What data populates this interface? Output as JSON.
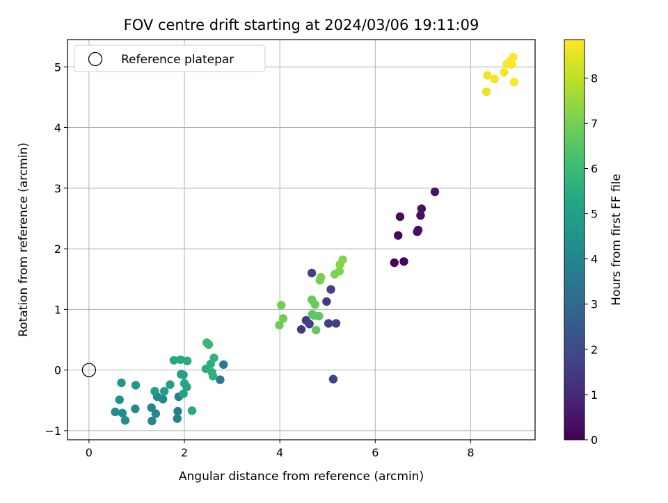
{
  "chart_data": {
    "type": "scatter",
    "title": "FOV centre drift starting at 2024/03/06 19:11:09",
    "xlabel": "Angular distance from reference (arcmin)",
    "ylabel": "Rotation from reference (arcmin)",
    "xlim": [
      -0.45,
      9.35
    ],
    "ylim": [
      -1.15,
      5.45
    ],
    "xticks": [
      0,
      2,
      4,
      6,
      8
    ],
    "yticks": [
      -1,
      0,
      1,
      2,
      3,
      4,
      5
    ],
    "grid": true,
    "legend": {
      "placement": "top-left",
      "entries": [
        "Reference platepar"
      ]
    },
    "reference_point": {
      "x": 0,
      "y": 0,
      "label": "Reference platepar"
    },
    "colorbar": {
      "label": "Hours from first FF file",
      "range": [
        0,
        8.85
      ],
      "ticks": [
        0,
        1,
        2,
        3,
        4,
        5,
        6,
        7,
        8
      ],
      "colormap": "viridis"
    },
    "series": [
      {
        "points": [
          {
            "x": 6.4,
            "y": 1.77,
            "h": 0.05
          },
          {
            "x": 6.6,
            "y": 1.79,
            "h": 0.1
          },
          {
            "x": 6.48,
            "y": 2.22,
            "h": 0.2
          },
          {
            "x": 6.52,
            "y": 2.53,
            "h": 0.25
          },
          {
            "x": 6.88,
            "y": 2.28,
            "h": 0.3
          },
          {
            "x": 6.9,
            "y": 2.31,
            "h": 0.35
          },
          {
            "x": 6.95,
            "y": 2.55,
            "h": 0.4
          },
          {
            "x": 6.97,
            "y": 2.66,
            "h": 0.45
          },
          {
            "x": 7.25,
            "y": 2.94,
            "h": 0.5
          },
          {
            "x": 4.45,
            "y": 0.67,
            "h": 1.55
          },
          {
            "x": 4.55,
            "y": 0.82,
            "h": 1.6
          },
          {
            "x": 4.62,
            "y": 0.76,
            "h": 1.65
          },
          {
            "x": 4.67,
            "y": 1.6,
            "h": 1.7
          },
          {
            "x": 4.98,
            "y": 1.13,
            "h": 1.55
          },
          {
            "x": 5.02,
            "y": 0.77,
            "h": 1.6
          },
          {
            "x": 5.07,
            "y": 1.33,
            "h": 1.7
          },
          {
            "x": 5.18,
            "y": 0.77,
            "h": 1.65
          },
          {
            "x": 5.12,
            "y": -0.15,
            "h": 1.75
          },
          {
            "x": 2.75,
            "y": -0.16,
            "h": 3.5
          },
          {
            "x": 2.82,
            "y": 0.09,
            "h": 3.6
          },
          {
            "x": 1.88,
            "y": -0.44,
            "h": 3.7
          },
          {
            "x": 1.86,
            "y": -0.68,
            "h": 3.8
          },
          {
            "x": 1.85,
            "y": -0.8,
            "h": 3.85
          },
          {
            "x": 1.31,
            "y": -0.62,
            "h": 3.95
          },
          {
            "x": 1.32,
            "y": -0.84,
            "h": 4.0
          },
          {
            "x": 1.4,
            "y": -0.72,
            "h": 4.05
          },
          {
            "x": 1.43,
            "y": -0.44,
            "h": 4.1
          },
          {
            "x": 1.55,
            "y": -0.48,
            "h": 4.15
          },
          {
            "x": 0.97,
            "y": -0.64,
            "h": 4.2
          },
          {
            "x": 0.55,
            "y": -0.69,
            "h": 4.3
          },
          {
            "x": 0.64,
            "y": -0.49,
            "h": 4.35
          },
          {
            "x": 0.7,
            "y": -0.71,
            "h": 4.4
          },
          {
            "x": 0.76,
            "y": -0.83,
            "h": 4.5
          },
          {
            "x": 0.68,
            "y": -0.21,
            "h": 4.6
          },
          {
            "x": 0.98,
            "y": -0.25,
            "h": 4.7
          },
          {
            "x": 1.38,
            "y": -0.35,
            "h": 4.8
          },
          {
            "x": 1.58,
            "y": -0.35,
            "h": 4.9
          },
          {
            "x": 1.7,
            "y": -0.24,
            "h": 5.0
          },
          {
            "x": 1.93,
            "y": -0.07,
            "h": 5.05
          },
          {
            "x": 1.98,
            "y": -0.08,
            "h": 5.1
          },
          {
            "x": 1.98,
            "y": -0.39,
            "h": 5.15
          },
          {
            "x": 2.0,
            "y": -0.22,
            "h": 5.2
          },
          {
            "x": 2.05,
            "y": -0.28,
            "h": 5.25
          },
          {
            "x": 1.78,
            "y": 0.16,
            "h": 5.3
          },
          {
            "x": 1.92,
            "y": 0.17,
            "h": 5.35
          },
          {
            "x": 2.06,
            "y": 0.15,
            "h": 5.4
          },
          {
            "x": 2.16,
            "y": -0.67,
            "h": 5.45
          },
          {
            "x": 2.45,
            "y": 0.02,
            "h": 5.5
          },
          {
            "x": 2.55,
            "y": 0.1,
            "h": 5.55
          },
          {
            "x": 2.58,
            "y": -0.04,
            "h": 5.6
          },
          {
            "x": 2.6,
            "y": -0.1,
            "h": 5.65
          },
          {
            "x": 2.62,
            "y": 0.2,
            "h": 5.7
          },
          {
            "x": 2.47,
            "y": 0.45,
            "h": 5.8
          },
          {
            "x": 2.51,
            "y": 0.42,
            "h": 5.85
          },
          {
            "x": 4.68,
            "y": 0.92,
            "h": 6.55
          },
          {
            "x": 4.72,
            "y": 0.9,
            "h": 6.6
          },
          {
            "x": 4.82,
            "y": 0.89,
            "h": 6.65
          },
          {
            "x": 4.76,
            "y": 0.66,
            "h": 6.7
          },
          {
            "x": 4.67,
            "y": 1.16,
            "h": 6.75
          },
          {
            "x": 4.74,
            "y": 1.08,
            "h": 6.8
          },
          {
            "x": 3.99,
            "y": 0.74,
            "h": 6.85
          },
          {
            "x": 4.07,
            "y": 0.85,
            "h": 6.9
          },
          {
            "x": 4.03,
            "y": 1.07,
            "h": 6.95
          },
          {
            "x": 4.84,
            "y": 1.48,
            "h": 7.0
          },
          {
            "x": 4.86,
            "y": 1.53,
            "h": 7.05
          },
          {
            "x": 5.15,
            "y": 1.58,
            "h": 7.1
          },
          {
            "x": 5.25,
            "y": 1.63,
            "h": 7.15
          },
          {
            "x": 5.26,
            "y": 1.74,
            "h": 7.2
          },
          {
            "x": 5.32,
            "y": 1.82,
            "h": 7.25
          },
          {
            "x": 8.33,
            "y": 4.59,
            "h": 8.6
          },
          {
            "x": 8.35,
            "y": 4.86,
            "h": 8.65
          },
          {
            "x": 8.5,
            "y": 4.8,
            "h": 8.7
          },
          {
            "x": 8.7,
            "y": 4.91,
            "h": 8.75
          },
          {
            "x": 8.76,
            "y": 5.05,
            "h": 8.8
          },
          {
            "x": 8.83,
            "y": 5.09,
            "h": 8.82
          },
          {
            "x": 8.86,
            "y": 5.04,
            "h": 8.84
          },
          {
            "x": 8.89,
            "y": 5.16,
            "h": 8.85
          },
          {
            "x": 8.91,
            "y": 4.75,
            "h": 8.85
          }
        ]
      }
    ]
  }
}
